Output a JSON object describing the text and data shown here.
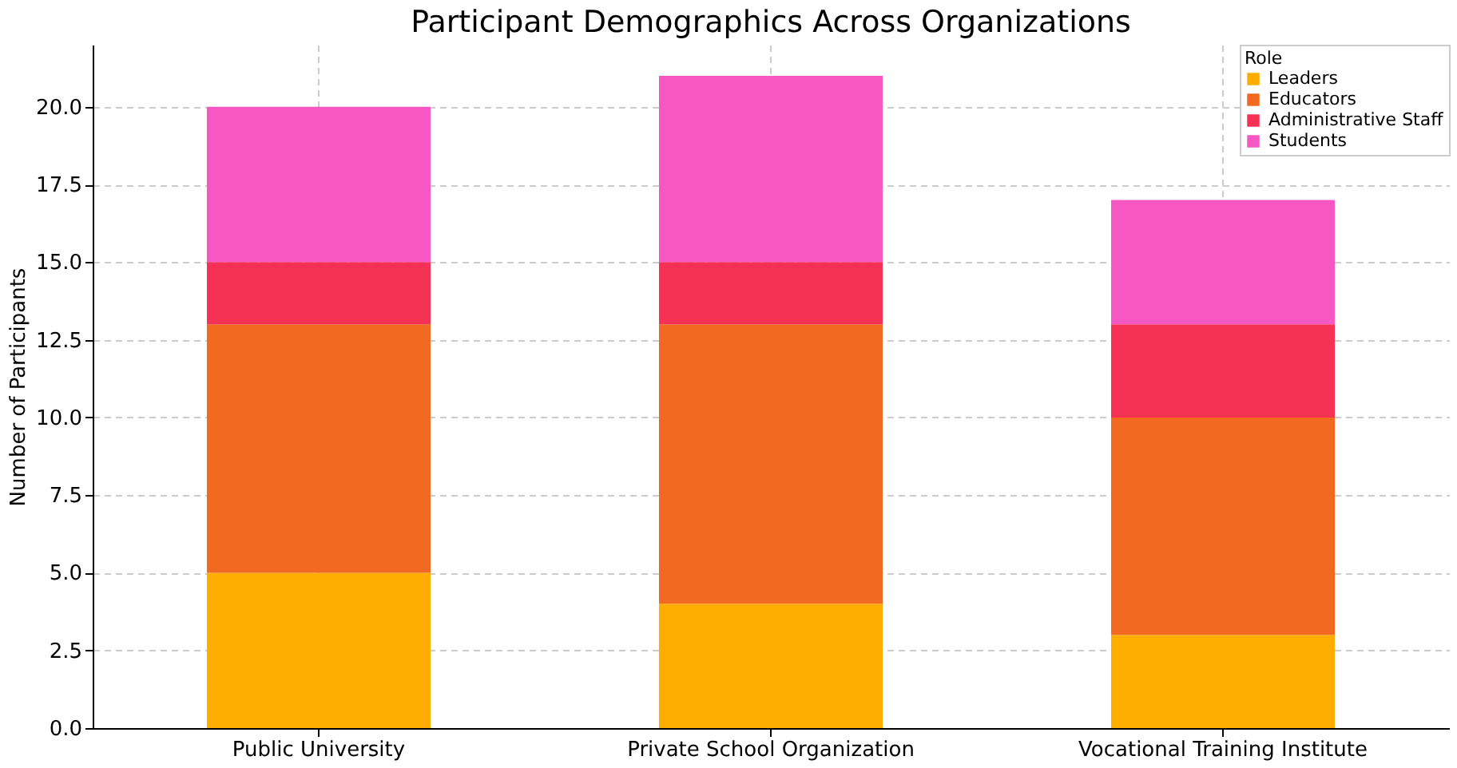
{
  "chart_data": {
    "type": "bar",
    "title": "Participant Demographics Across Organizations",
    "ylabel": "Number of Participants",
    "legend_title": "Role",
    "categories": [
      "Public University",
      "Private School Organization",
      "Vocational Training Institute"
    ],
    "stacked": true,
    "series": [
      {
        "name": "Leaders",
        "color": "#ffae00",
        "values": [
          5,
          4,
          3
        ]
      },
      {
        "name": "Educators",
        "color": "#f26a21",
        "values": [
          8,
          9,
          7
        ]
      },
      {
        "name": "Administrative Staff",
        "color": "#f53255",
        "values": [
          2,
          2,
          3
        ]
      },
      {
        "name": "Students",
        "color": "#f757c3",
        "values": [
          5,
          6,
          4
        ]
      }
    ],
    "ylim": [
      0,
      22
    ],
    "yticks": [
      {
        "value": 0,
        "label": "0.0"
      },
      2.5,
      {
        "value": 5,
        "label": "5.0"
      },
      7.5,
      {
        "value": 10,
        "label": "10.0"
      },
      12.5,
      {
        "value": 15,
        "label": "15.0"
      },
      17.5,
      {
        "value": 20,
        "label": "20.0"
      }
    ],
    "grid": true,
    "legend": "top right"
  }
}
